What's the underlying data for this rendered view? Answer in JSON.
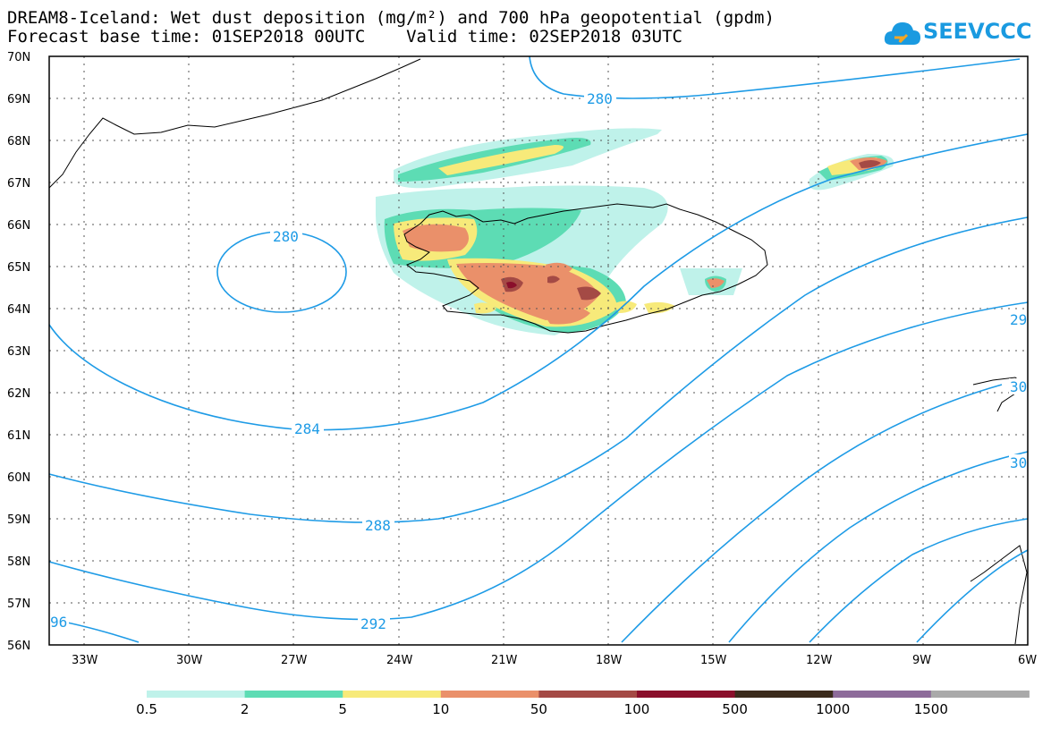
{
  "header": {
    "title_line1": "DREAM8-Iceland: Wet dust deposition (mg/m²) and 700 hPa geopotential (gpdm)",
    "title_line2": "Forecast base time: 01SEP2018 00UTC    Valid time: 02SEP2018 03UTC"
  },
  "logo": {
    "text": "SEEVCCC",
    "icon": "cloud-icon",
    "color": "#1a9ae0"
  },
  "axes": {
    "lat_labels": [
      "70N",
      "69N",
      "68N",
      "67N",
      "66N",
      "65N",
      "64N",
      "63N",
      "62N",
      "61N",
      "60N",
      "59N",
      "58N",
      "57N",
      "56N"
    ],
    "lon_labels": [
      "33W",
      "30W",
      "27W",
      "24W",
      "21W",
      "18W",
      "15W",
      "12W",
      "9W",
      "6W"
    ]
  },
  "contours": {
    "labels": [
      "280",
      "280",
      "284",
      "288",
      "292",
      "96",
      "29",
      "30",
      "30"
    ],
    "color": "#1e9be6"
  },
  "legend": {
    "colors": [
      "#bff2ea",
      "#5ddcb4",
      "#f7ea7a",
      "#ea906a",
      "#a44a45",
      "#8a0f2b",
      "#3b2b1c",
      "#8d6b9a",
      "#a9a9a9"
    ],
    "labels": [
      "0.5",
      "2",
      "5",
      "10",
      "50",
      "100",
      "500",
      "1000",
      "1500"
    ]
  }
}
